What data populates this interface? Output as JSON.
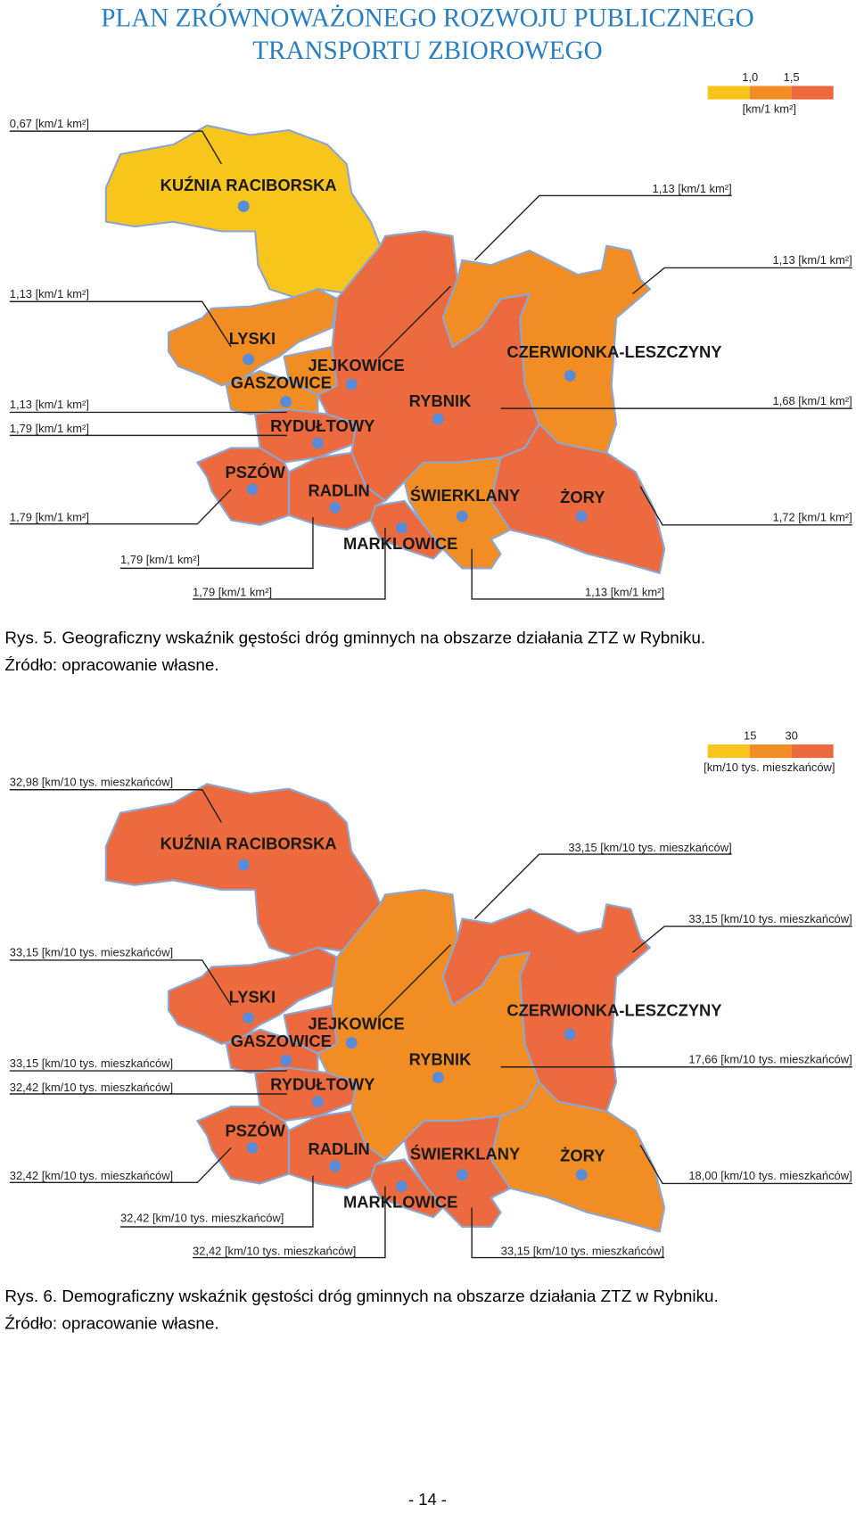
{
  "header": {
    "title": [
      "PLAN ZRÓWNOWAŻONEGO ROZWOJU PUBLICZNEGO",
      "TRANSPORTU ZBIOROWEGO"
    ]
  },
  "figures": [
    {
      "legend": {
        "ticks": [
          "1,0",
          "1,5"
        ],
        "unit": "[km/1 km²]",
        "colors": [
          "#f7c51b",
          "#f28d24",
          "#ec6a3e"
        ]
      },
      "regions": [
        {
          "name": "KUŹNIA RACIBORSKA",
          "fill": "#f7c51b"
        },
        {
          "name": "LYSKI",
          "fill": "#f28d24"
        },
        {
          "name": "JEJKOWICE",
          "fill": "#f28d24"
        },
        {
          "name": "GASZOWICE",
          "fill": "#f28d24"
        },
        {
          "name": "RYDUŁTOWY",
          "fill": "#ec6a3e"
        },
        {
          "name": "RYBNIK",
          "fill": "#ec6a3e"
        },
        {
          "name": "CZERWIONKA-LESZCZYNY",
          "fill": "#f28d24"
        },
        {
          "name": "PSZÓW",
          "fill": "#ec6a3e"
        },
        {
          "name": "RADLIN",
          "fill": "#ec6a3e"
        },
        {
          "name": "ŚWIERKLANY",
          "fill": "#f28d24"
        },
        {
          "name": "ŻORY",
          "fill": "#ec6a3e"
        },
        {
          "name": "MARKLOWICE",
          "fill": "#ec6a3e"
        }
      ],
      "callouts": [
        "0,67 [km/1 km²]",
        "1,13 [km/1 km²]",
        "1,13 [km/1 km²]",
        "1,13 [km/1 km²]",
        "1,13 [km/1 km²]",
        "1,79 [km/1 km²]",
        "1,68 [km/1 km²]",
        "1,79 [km/1 km²]",
        "1,72 [km/1 km²]",
        "1,79 [km/1 km²]",
        "1,79 [km/1 km²]",
        "1,13 [km/1 km²]"
      ],
      "caption": [
        "Rys. 5.  Geograficzny wskaźnik gęstości dróg gminnych na obszarze działania ZTZ w Rybniku.",
        "Źródło: opracowanie własne."
      ]
    },
    {
      "legend": {
        "ticks": [
          "15",
          "30"
        ],
        "unit": "[km/10 tys. mieszkańców]",
        "colors": [
          "#f7c51b",
          "#f28d24",
          "#ec6a3e"
        ]
      },
      "regions": [
        {
          "name": "KUŹNIA RACIBORSKA",
          "fill": "#ec6a3e"
        },
        {
          "name": "LYSKI",
          "fill": "#ec6a3e"
        },
        {
          "name": "JEJKOWICE",
          "fill": "#ec6a3e"
        },
        {
          "name": "GASZOWICE",
          "fill": "#ec6a3e"
        },
        {
          "name": "RYDUŁTOWY",
          "fill": "#ec6a3e"
        },
        {
          "name": "RYBNIK",
          "fill": "#f28d24"
        },
        {
          "name": "CZERWIONKA-LESZCZYNY",
          "fill": "#ec6a3e"
        },
        {
          "name": "PSZÓW",
          "fill": "#ec6a3e"
        },
        {
          "name": "RADLIN",
          "fill": "#ec6a3e"
        },
        {
          "name": "ŚWIERKLANY",
          "fill": "#ec6a3e"
        },
        {
          "name": "ŻORY",
          "fill": "#f28d24"
        },
        {
          "name": "MARKLOWICE",
          "fill": "#ec6a3e"
        }
      ],
      "callouts": [
        "32,98 [km/10 tys. mieszkańców]",
        "33,15 [km/10 tys. mieszkańców]",
        "33,15 [km/10 tys. mieszkańców]",
        "33,15 [km/10 tys. mieszkańców]",
        "33,15 [km/10 tys. mieszkańców]",
        "32,42 [km/10 tys. mieszkańców]",
        "17,66 [km/10 tys. mieszkańców]",
        "32,42 [km/10 tys. mieszkańców]",
        "18,00 [km/10 tys. mieszkańców]",
        "32,42 [km/10 tys. mieszkańców]",
        "32,42 [km/10 tys. mieszkańców]",
        "33,15 [km/10 tys. mieszkańców]"
      ],
      "caption": [
        "Rys. 6. Demograficzny wskaźnik gęstości dróg gminnych na obszarze działania ZTZ w Rybniku.",
        "Źródło: opracowanie własne."
      ]
    }
  ],
  "footer": {
    "page": "- 14 -"
  }
}
